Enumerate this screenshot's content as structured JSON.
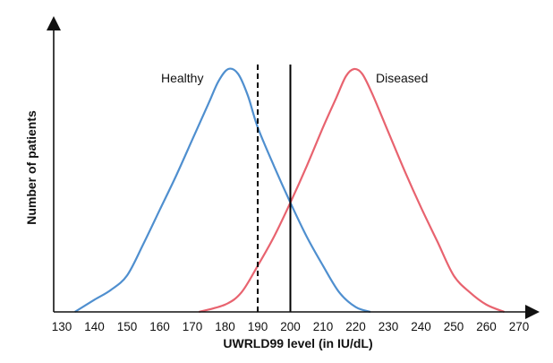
{
  "chart_data": {
    "type": "line",
    "title": "",
    "xlabel": "UWRLD99 level (in IU/dL)",
    "ylabel": "Number of patients",
    "xlim": [
      130,
      270
    ],
    "ylim": [
      0,
      1
    ],
    "x_ticks": [
      130,
      140,
      150,
      160,
      170,
      180,
      190,
      200,
      210,
      220,
      230,
      240,
      250,
      260,
      270
    ],
    "grid": false,
    "legend": "none",
    "series": [
      {
        "name": "Healthy",
        "color": "#4f8fcf",
        "x": [
          134,
          140,
          145,
          150,
          155,
          160,
          165,
          170,
          175,
          178,
          181,
          184,
          187,
          190,
          195,
          200,
          205,
          210,
          215,
          220,
          224.5
        ],
        "y": [
          0.0,
          0.05,
          0.09,
          0.15,
          0.28,
          0.42,
          0.56,
          0.71,
          0.86,
          0.95,
          1.0,
          0.98,
          0.89,
          0.76,
          0.6,
          0.45,
          0.31,
          0.19,
          0.08,
          0.02,
          0.0
        ]
      },
      {
        "name": "Diseased",
        "color": "#e8636f",
        "x": [
          172,
          180,
          185,
          190,
          195,
          200,
          205,
          210,
          214,
          217,
          219.5,
          222,
          225,
          230,
          235,
          240,
          245,
          250,
          255,
          260,
          265.5
        ],
        "y": [
          0.0,
          0.03,
          0.08,
          0.19,
          0.31,
          0.45,
          0.6,
          0.76,
          0.88,
          0.97,
          1.0,
          0.98,
          0.9,
          0.74,
          0.58,
          0.43,
          0.29,
          0.15,
          0.08,
          0.03,
          0.0
        ]
      }
    ],
    "reference_lines": [
      {
        "x": 190,
        "style": "dashed",
        "color": "#000000"
      },
      {
        "x": 200,
        "style": "solid",
        "color": "#000000"
      }
    ]
  }
}
